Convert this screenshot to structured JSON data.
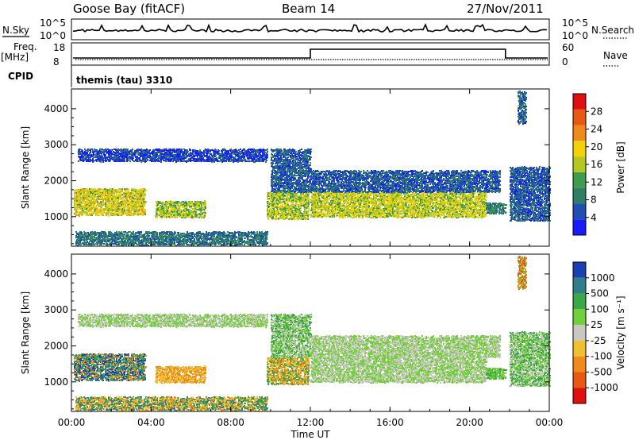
{
  "header": {
    "station": "Goose Bay (fitACF)",
    "beam": "Beam 14",
    "date": "27/Nov/2011"
  },
  "top_panels": {
    "nsky_label": "N.Sky",
    "nsky_ticks": [
      "10^5",
      "10^0"
    ],
    "nsearch_label": "N.Search",
    "nsearch_ticks": [
      "10^5",
      "10^0"
    ],
    "freq_label": "Freq.",
    "freq_unit": "[MHz]",
    "freq_ticks": [
      "18",
      "8"
    ],
    "nave_label": "Nave",
    "nave_ticks": [
      "60",
      "0"
    ],
    "cpid_label": "CPID",
    "cpid_value": "themis (tau) 3310"
  },
  "chart_data": [
    {
      "type": "heatmap",
      "name": "power",
      "ylabel": "Slant Range [km]",
      "xlabel": "Time UT",
      "x_ticks": [
        "00:00",
        "04:00",
        "08:00",
        "12:00",
        "16:00",
        "20:00",
        "00:00"
      ],
      "xlim_hours": [
        0,
        24
      ],
      "y_ticks": [
        "1000",
        "2000",
        "3000",
        "4000"
      ],
      "ylim": [
        180,
        4550
      ],
      "colorbar": {
        "label": "Power [dB]",
        "ticks": [
          "4",
          "8",
          "12",
          "16",
          "20",
          "24",
          "28"
        ],
        "colors": [
          "#1a1aff",
          "#1f4fb0",
          "#2f7e6a",
          "#3f9b4e",
          "#b5c820",
          "#f5d10a",
          "#f08a1c",
          "#e85a14",
          "#e01010"
        ]
      }
    },
    {
      "type": "heatmap",
      "name": "velocity",
      "ylabel": "Slant Range [km]",
      "xlabel": "Time UT",
      "x_ticks": [
        "00:00",
        "04:00",
        "08:00",
        "12:00",
        "16:00",
        "20:00",
        "00:00"
      ],
      "xlim_hours": [
        0,
        24
      ],
      "y_ticks": [
        "1000",
        "2000",
        "3000",
        "4000"
      ],
      "ylim": [
        180,
        4550
      ],
      "colorbar": {
        "label": "Velocity [m s⁻¹]",
        "ticks": [
          "1000",
          "500",
          "100",
          "25",
          "-25",
          "-100",
          "-500",
          "-1000"
        ],
        "colors": [
          "#1a3fb0",
          "#2e7f8a",
          "#3aa84a",
          "#72d03a",
          "#c8c8c0",
          "#f0c030",
          "#f08a1c",
          "#e85a14",
          "#e01010"
        ]
      }
    }
  ],
  "scatter_regions": [
    {
      "t0": 0.1,
      "t1": 3.7,
      "r0": 1050,
      "r1": 1800,
      "mean_power": 20,
      "vel": [
        -500,
        100,
        500,
        1000
      ]
    },
    {
      "t0": 4.2,
      "t1": 6.7,
      "r0": 1000,
      "r1": 1450,
      "mean_power": 17,
      "vel": [
        -500,
        -100
      ]
    },
    {
      "t0": 0.3,
      "t1": 9.8,
      "r0": 2550,
      "r1": 2900,
      "mean_power": 5,
      "vel": [
        25,
        -25
      ]
    },
    {
      "t0": 0.2,
      "t1": 9.8,
      "r0": 230,
      "r1": 600,
      "mean_power": 9,
      "vel": [
        -100,
        100,
        500,
        -500
      ]
    },
    {
      "t0": 9.8,
      "t1": 11.9,
      "r0": 950,
      "r1": 1700,
      "mean_power": 18,
      "vel": [
        -500,
        -100,
        100
      ]
    },
    {
      "t0": 10.0,
      "t1": 12.0,
      "r0": 1700,
      "r1": 2900,
      "mean_power": 7,
      "vel": [
        25,
        100,
        -25
      ]
    },
    {
      "t0": 12.0,
      "t1": 20.8,
      "r0": 1000,
      "r1": 1700,
      "mean_power": 19,
      "vel": [
        25,
        -25
      ]
    },
    {
      "t0": 12.0,
      "t1": 21.5,
      "r0": 1700,
      "r1": 2300,
      "mean_power": 7,
      "vel": [
        25,
        -25
      ]
    },
    {
      "t0": 20.8,
      "t1": 21.8,
      "r0": 1100,
      "r1": 1400,
      "mean_power": 10,
      "vel": [
        25,
        100
      ]
    },
    {
      "t0": 22.0,
      "t1": 24.0,
      "r0": 900,
      "r1": 2400,
      "mean_power": 7,
      "vel": [
        25,
        100,
        -25
      ]
    },
    {
      "t0": 22.4,
      "t1": 22.8,
      "r0": 3600,
      "r1": 4500,
      "mean_power": 8,
      "vel": [
        -500,
        -1000,
        25
      ]
    }
  ]
}
